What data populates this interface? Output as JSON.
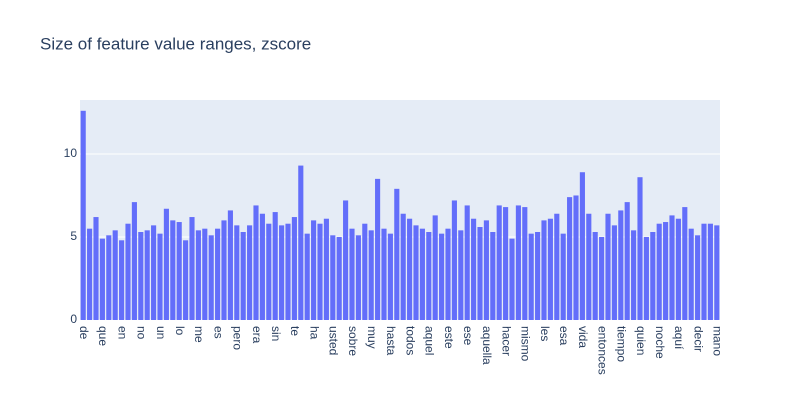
{
  "chart_data": {
    "type": "bar",
    "title": "Size of feature value ranges, zscore",
    "categories": [
      "de",
      null,
      null,
      "que",
      null,
      null,
      "en",
      null,
      null,
      "no",
      null,
      null,
      "un",
      null,
      null,
      "lo",
      null,
      null,
      "me",
      null,
      null,
      "es",
      null,
      null,
      "pero",
      null,
      null,
      "era",
      null,
      null,
      "sin",
      null,
      null,
      "te",
      null,
      null,
      "ha",
      null,
      null,
      "usted",
      null,
      null,
      "sobre",
      null,
      null,
      "muy",
      null,
      null,
      "hasta",
      null,
      null,
      "todos",
      null,
      null,
      "aquel",
      null,
      null,
      "este",
      null,
      null,
      "ese",
      null,
      null,
      "aquella",
      null,
      null,
      "hacer",
      null,
      null,
      "mismo",
      null,
      null,
      "les",
      null,
      null,
      "esa",
      null,
      null,
      "vida",
      null,
      null,
      "entonces",
      null,
      null,
      "tiempo",
      null,
      null,
      "quien",
      null,
      null,
      "noche",
      null,
      null,
      "aquí",
      null,
      null,
      "decir",
      null,
      null,
      "mano"
    ],
    "values": [
      12.6,
      5.5,
      6.2,
      4.9,
      5.1,
      5.4,
      4.8,
      5.8,
      7.1,
      5.3,
      5.4,
      5.7,
      5.2,
      6.7,
      6.0,
      5.9,
      4.8,
      6.2,
      5.4,
      5.5,
      5.1,
      5.5,
      6.0,
      6.6,
      5.7,
      5.3,
      5.7,
      6.9,
      6.4,
      5.8,
      6.5,
      5.7,
      5.8,
      6.2,
      9.3,
      5.2,
      6.0,
      5.8,
      6.1,
      5.1,
      5.0,
      7.2,
      5.5,
      5.1,
      5.8,
      5.4,
      8.5,
      5.5,
      5.2,
      7.9,
      6.4,
      6.1,
      5.7,
      5.5,
      5.3,
      6.3,
      5.2,
      5.5,
      7.2,
      5.4,
      6.9,
      6.1,
      5.6,
      6.0,
      5.3,
      6.9,
      6.8,
      4.9,
      6.9,
      6.8,
      5.2,
      5.3,
      6.0,
      6.1,
      6.4,
      5.2,
      7.4,
      7.5,
      8.9,
      6.4,
      5.3,
      5.0,
      6.4,
      5.7,
      6.6,
      7.1,
      5.4,
      8.6,
      5.0,
      5.3,
      5.8,
      5.9,
      6.3,
      6.1,
      6.8,
      5.5,
      5.1,
      5.8,
      5.8,
      5.7
    ],
    "color": "#636efa",
    "ylim": [
      0,
      13.25
    ],
    "yticks": [
      0,
      5,
      10
    ],
    "grid": true
  }
}
